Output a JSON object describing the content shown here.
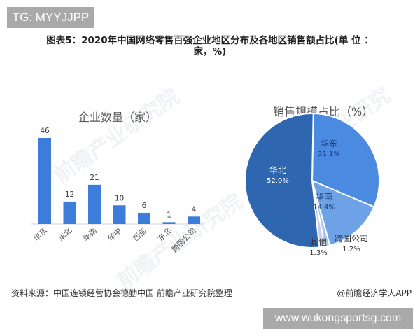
{
  "watermark_top": "TG: MYYJJPP",
  "title": {
    "line1": "图表5：2020年中国网络零售百强企业地区分布及各地区销售额占比(单 位 ：",
    "line2": "家，%)"
  },
  "watermark_bg": "前瞻产业研究院",
  "source": "资料来源：中国连锁经营协会德勤中国 前瞻产业研究院整理",
  "credit": "@前瞻经济学人APP",
  "watermark_bottom": "www.wukongsportsg.com",
  "colors": {
    "bar": "#3c7ddc",
    "pie_huabei": "#2f66b0",
    "pie_huadong": "#4a8ae0",
    "pie_huanan": "#6ea2e6",
    "pie_kuaguo": "#a9c4ee",
    "pie_qita": "#c4cfe8",
    "divider": "#b55a5a"
  },
  "chart_data": [
    {
      "type": "bar",
      "title": "企业数量（家）",
      "categories": [
        "华东",
        "华北",
        "华南",
        "华中",
        "西部",
        "东北",
        "跨国公司"
      ],
      "values": [
        46,
        12,
        21,
        10,
        6,
        1,
        4
      ],
      "labels": [
        "46",
        "12",
        "21",
        "10",
        "6",
        "1",
        "4"
      ],
      "xlabel": "",
      "ylabel": "",
      "grid": false
    },
    {
      "type": "pie",
      "title": "销售规模占比（%）",
      "categories": [
        "华东",
        "华南",
        "跨国公司",
        "其他",
        "华北"
      ],
      "values": [
        31.1,
        14.4,
        1.2,
        1.3,
        52.0
      ],
      "labels": [
        "31.1%",
        "14.4%",
        "1.2%",
        "1.3%",
        "52.0%"
      ]
    }
  ]
}
